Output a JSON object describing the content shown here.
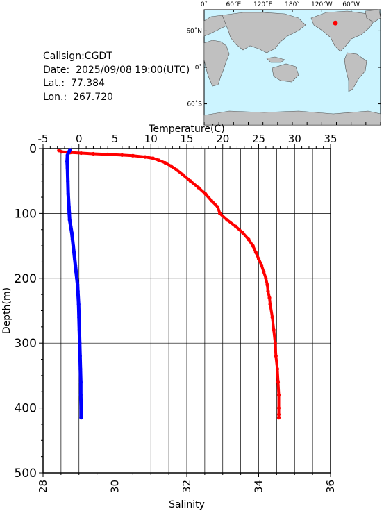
{
  "station": {
    "callsign": "Callsign:CGDT",
    "date": "Date:  2025/09/08 19:00(UTC)",
    "lat": "Lat.:  77.384",
    "lon": "Lon.:  267.720"
  },
  "map": {
    "top_ticks": [
      "0˚",
      "60˚E",
      "120˚E",
      "180˚",
      "120˚W",
      "60˚W"
    ],
    "left_ticks": [
      "60˚N",
      "0˚",
      "60˚S"
    ],
    "ocean_color": "#ccf4ff",
    "land_color": "#c0c0c0",
    "marker_color": "#ff0000",
    "marker": {
      "lon": 267.72,
      "lat": 77.384
    }
  },
  "chart_data": {
    "type": "line",
    "ylabel": "Depth(m)",
    "ylim": [
      500,
      0
    ],
    "y_ticks": [
      0,
      100,
      200,
      300,
      400,
      500
    ],
    "top_axis": {
      "label": "Temperature(C)",
      "range": [
        -5,
        35
      ],
      "ticks": [
        -5,
        0,
        5,
        10,
        15,
        20,
        25,
        30,
        35
      ]
    },
    "bottom_axis": {
      "label": "Salinity",
      "range": [
        28,
        36
      ],
      "ticks": [
        28,
        30,
        32,
        34,
        36
      ]
    },
    "grid": true,
    "series": [
      {
        "color": "#ff0000",
        "axis": "top",
        "depth": [
          3,
          5,
          6,
          7,
          8,
          9,
          10,
          11,
          13,
          15,
          18,
          22,
          27,
          33,
          40,
          50,
          60,
          70,
          80,
          90,
          100,
          110,
          120,
          130,
          140,
          150,
          160,
          170,
          180,
          190,
          200,
          210,
          220,
          230,
          240,
          260,
          280,
          300,
          320,
          340,
          360,
          380,
          400,
          410,
          415
        ],
        "values": [
          -2.8,
          -2.4,
          -1.2,
          0.3,
          2.0,
          4.0,
          6.0,
          7.5,
          9.2,
          10.3,
          11.1,
          12.0,
          12.8,
          13.6,
          14.4,
          15.5,
          16.6,
          17.6,
          18.4,
          19.3,
          19.6,
          20.6,
          21.8,
          22.8,
          23.6,
          24.2,
          24.6,
          25.0,
          25.4,
          25.7,
          26.0,
          26.2,
          26.3,
          26.5,
          26.6,
          26.9,
          27.1,
          27.3,
          27.4,
          27.6,
          27.7,
          27.8,
          27.8,
          27.8,
          27.8
        ]
      },
      {
        "color": "#0000ff",
        "axis": "bottom",
        "depth": [
          2,
          5,
          10,
          20,
          30,
          50,
          70,
          90,
          100,
          110,
          120,
          130,
          140,
          150,
          160,
          170,
          180,
          190,
          200,
          210,
          220,
          240,
          260,
          280,
          300,
          320,
          340,
          360,
          380,
          400,
          415
        ],
        "values": [
          28.75,
          28.72,
          28.68,
          28.67,
          28.68,
          28.69,
          28.7,
          28.72,
          28.73,
          28.74,
          28.77,
          28.8,
          28.82,
          28.84,
          28.86,
          28.88,
          28.9,
          28.92,
          28.94,
          28.96,
          28.97,
          28.99,
          29.0,
          29.01,
          29.02,
          29.03,
          29.04,
          29.05,
          29.05,
          29.06,
          29.06
        ]
      }
    ]
  }
}
